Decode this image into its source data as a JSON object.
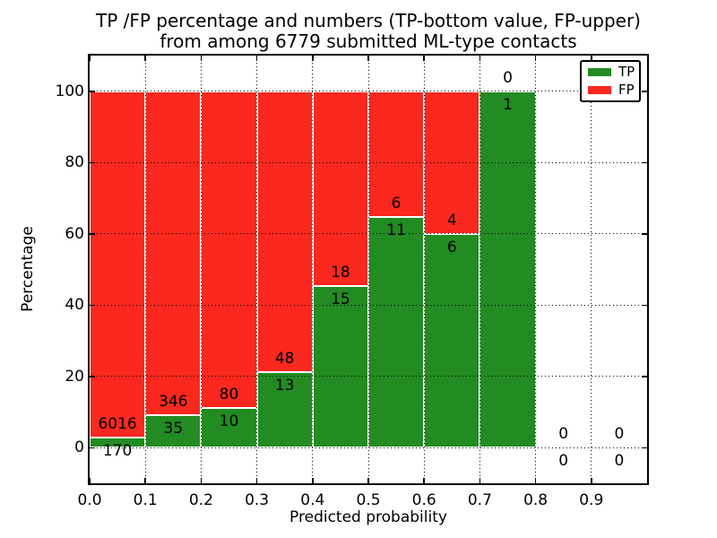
{
  "figure": {
    "title_line1": "TP /FP percentage and numbers (TP-bottom value, FP-upper)",
    "title_line2": "from among 6779 submitted ML-type contacts"
  },
  "chart_data": {
    "type": "bar",
    "stacked": true,
    "title": "TP /FP percentage and numbers (TP-bottom value, FP-upper)\nfrom among 6779 submitted ML-type contacts",
    "xlabel": "Predicted probability",
    "ylabel": "Percentage",
    "total_submitted_contacts": 6779,
    "xlim": [
      0.0,
      1.0
    ],
    "ylim": [
      -10,
      110
    ],
    "x_tick_labels": [
      "0.0",
      "0.1",
      "0.2",
      "0.3",
      "0.4",
      "0.5",
      "0.6",
      "0.7",
      "0.8",
      "0.9"
    ],
    "y_tick_labels": [
      "0",
      "20",
      "40",
      "60",
      "80",
      "100"
    ],
    "grid": true,
    "grid_style": "dotted-black",
    "legend": {
      "position": "upper-right",
      "entries": [
        {
          "label": "TP",
          "color": "#228b22"
        },
        {
          "label": "FP",
          "color": "#fa281e"
        }
      ]
    },
    "series_note": "Each bin stacked to 100%: TP (green, bottom) + FP (red, top). Labels show raw counts: TP below boundary, FP above boundary.",
    "bins": [
      {
        "x_start": 0.0,
        "x_end": 0.1,
        "tp": 170,
        "fp": 6016,
        "tp_pct": 2.75,
        "fp_pct": 97.25
      },
      {
        "x_start": 0.1,
        "x_end": 0.2,
        "tp": 35,
        "fp": 346,
        "tp_pct": 9.19,
        "fp_pct": 90.81
      },
      {
        "x_start": 0.2,
        "x_end": 0.3,
        "tp": 10,
        "fp": 80,
        "tp_pct": 11.11,
        "fp_pct": 88.89
      },
      {
        "x_start": 0.3,
        "x_end": 0.4,
        "tp": 13,
        "fp": 48,
        "tp_pct": 21.31,
        "fp_pct": 78.69
      },
      {
        "x_start": 0.4,
        "x_end": 0.5,
        "tp": 15,
        "fp": 18,
        "tp_pct": 45.45,
        "fp_pct": 54.55
      },
      {
        "x_start": 0.5,
        "x_end": 0.6,
        "tp": 11,
        "fp": 6,
        "tp_pct": 64.71,
        "fp_pct": 35.29
      },
      {
        "x_start": 0.6,
        "x_end": 0.7,
        "tp": 6,
        "fp": 4,
        "tp_pct": 60.0,
        "fp_pct": 40.0
      },
      {
        "x_start": 0.7,
        "x_end": 0.8,
        "tp": 1,
        "fp": 0,
        "tp_pct": 100.0,
        "fp_pct": 0.0
      },
      {
        "x_start": 0.8,
        "x_end": 0.9,
        "tp": 0,
        "fp": 0,
        "tp_pct": null,
        "fp_pct": null
      },
      {
        "x_start": 0.9,
        "x_end": 1.0,
        "tp": 0,
        "fp": 0,
        "tp_pct": null,
        "fp_pct": null
      }
    ],
    "colors": {
      "tp_green": "#228b22",
      "fp_red": "#fa281e",
      "grid": "#000000",
      "frame": "#000000",
      "bar_edge": "#ffffff",
      "background": "#ffffff"
    }
  }
}
